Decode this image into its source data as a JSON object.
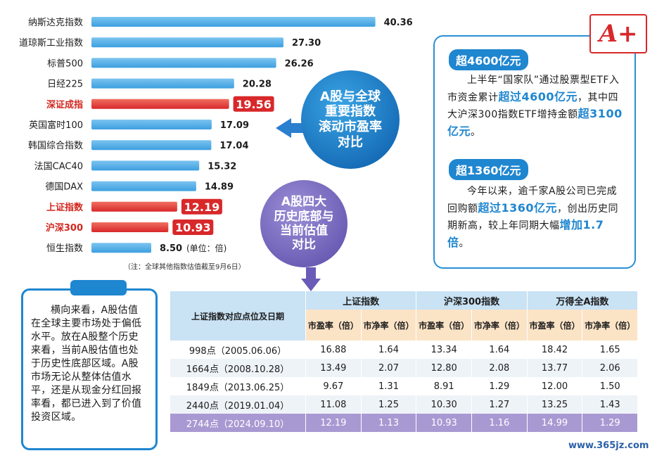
{
  "chart_data": {
    "type": "bar",
    "categories": [
      "纳斯达克指数",
      "道琼斯工业指数",
      "标普500",
      "日经225",
      "深证成指",
      "英国富时100",
      "韩国综合指数",
      "法国CAC40",
      "德国DAX",
      "上证指数",
      "沪深300",
      "恒生指数"
    ],
    "values": [
      40.36,
      27.3,
      26.26,
      20.28,
      19.56,
      17.09,
      17.04,
      15.32,
      14.89,
      12.19,
      10.93,
      8.5
    ],
    "value_labels": [
      "40.36",
      "27.30",
      "26.26",
      "20.28",
      "19.56",
      "17.09",
      "17.04",
      "15.32",
      "14.89",
      "12.19",
      "10.93",
      "8.50"
    ],
    "highlighted": [
      "深证成指",
      "上证指数",
      "沪深300"
    ],
    "unit_note": "(单位：倍)",
    "footnote": "（注：全球其他指数估值截至9月6日）",
    "colors": {
      "normal": "#3d9fe0",
      "highlight": "#d8282a"
    }
  },
  "circles": {
    "blue_lines": [
      "A股与全球",
      "重要指数",
      "滚动市盈率",
      "对比"
    ],
    "purple_lines": [
      "A股四大",
      "历史底部与",
      "当前估值",
      "对比"
    ]
  },
  "grade_badge": "A+",
  "info": {
    "pill1": "超4600亿元",
    "para1": {
      "t1": "上半年“国家队”通过股票型ETF入市资金累计",
      "e1": "超过4600亿元",
      "t2": "，其中四大沪深300指数ETF增持金额",
      "e2": "超3100亿元",
      "t3": "。"
    },
    "pill2": "超1360亿元",
    "para2": {
      "t1": "今年以来，逾千家A股公司已完成回购额",
      "e1": "超过1360亿元",
      "t2": "，创出历史同期新高，较上年同期大幅",
      "e2": "增加1.7倍",
      "t3": "。"
    }
  },
  "clipboard_text": "横向来看，A股估值在全球主要市场处于偏低水平。放在A股整个历史来看，当前A股估值也处于历史性底部区域。A股市场无论从整体估值水平，还是从现金分红回报率看，都已进入到了价值投资区域。",
  "table": {
    "corner": "上证指数对应点位及日期",
    "groups": [
      "上证指数",
      "沪深300指数",
      "万得全A指数"
    ],
    "subs": [
      "市盈率（倍）",
      "市净率（倍）",
      "市盈率（倍）",
      "市净率（倍）",
      "市盈率（倍）",
      "市净率（倍）"
    ],
    "rows": [
      [
        "998点（2005.06.06）",
        "16.88",
        "1.64",
        "13.34",
        "1.64",
        "18.42",
        "1.65"
      ],
      [
        "1664点（2008.10.28）",
        "13.49",
        "2.07",
        "12.80",
        "2.08",
        "13.77",
        "2.06"
      ],
      [
        "1849点（2013.06.25）",
        "9.67",
        "1.31",
        "8.91",
        "1.29",
        "12.00",
        "1.50"
      ],
      [
        "2440点（2019.01.04）",
        "11.08",
        "1.25",
        "10.30",
        "1.27",
        "13.25",
        "1.43"
      ],
      [
        "2744点（2024.09.10）",
        "12.19",
        "1.13",
        "10.93",
        "1.16",
        "14.99",
        "1.29"
      ]
    ]
  },
  "watermark": "www.365jz.com"
}
